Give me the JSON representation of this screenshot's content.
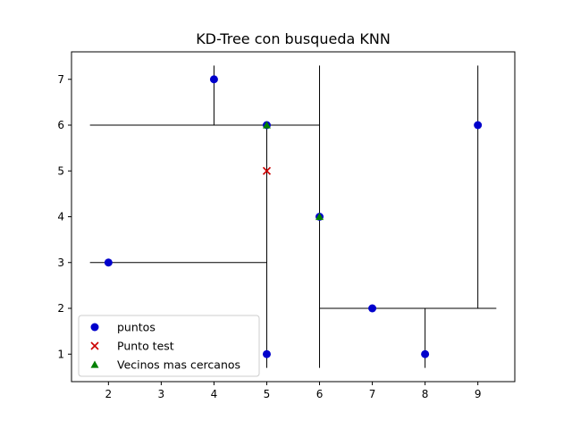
{
  "chart_data": {
    "type": "scatter",
    "title": "KD-Tree con busqueda KNN",
    "xlabel": "",
    "ylabel": "",
    "xlim": [
      1.3,
      9.7
    ],
    "ylim": [
      0.4,
      7.6
    ],
    "xticks": [
      2,
      3,
      4,
      5,
      6,
      7,
      8,
      9
    ],
    "yticks": [
      1,
      2,
      3,
      4,
      5,
      6,
      7
    ],
    "grid": false,
    "legend_position": "bottom-left",
    "series": [
      {
        "name": "puntos",
        "marker": "circle",
        "color": "#0000cc",
        "points": [
          [
            2,
            3
          ],
          [
            4,
            7
          ],
          [
            5,
            6
          ],
          [
            5,
            1
          ],
          [
            6,
            4
          ],
          [
            7,
            2
          ],
          [
            8,
            1
          ],
          [
            9,
            6
          ]
        ]
      },
      {
        "name": "Punto test",
        "marker": "x",
        "color": "#cc0000",
        "points": [
          [
            5,
            5
          ]
        ]
      },
      {
        "name": "Vecinos mas cercanos",
        "marker": "triangle",
        "color": "#008000",
        "points": [
          [
            5,
            6
          ],
          [
            6,
            4
          ]
        ]
      }
    ],
    "split_lines": [
      {
        "x1": 6,
        "y1": 0.7,
        "x2": 6,
        "y2": 7.3
      },
      {
        "x1": 1.65,
        "y1": 6,
        "x2": 6,
        "y2": 6
      },
      {
        "x1": 4,
        "y1": 6,
        "x2": 4,
        "y2": 7.3
      },
      {
        "x1": 5,
        "y1": 0.7,
        "x2": 5,
        "y2": 6
      },
      {
        "x1": 1.65,
        "y1": 3,
        "x2": 5,
        "y2": 3
      },
      {
        "x1": 6,
        "y1": 2,
        "x2": 9.35,
        "y2": 2
      },
      {
        "x1": 9,
        "y1": 2,
        "x2": 9,
        "y2": 7.3
      },
      {
        "x1": 8,
        "y1": 0.7,
        "x2": 8,
        "y2": 2
      }
    ]
  }
}
